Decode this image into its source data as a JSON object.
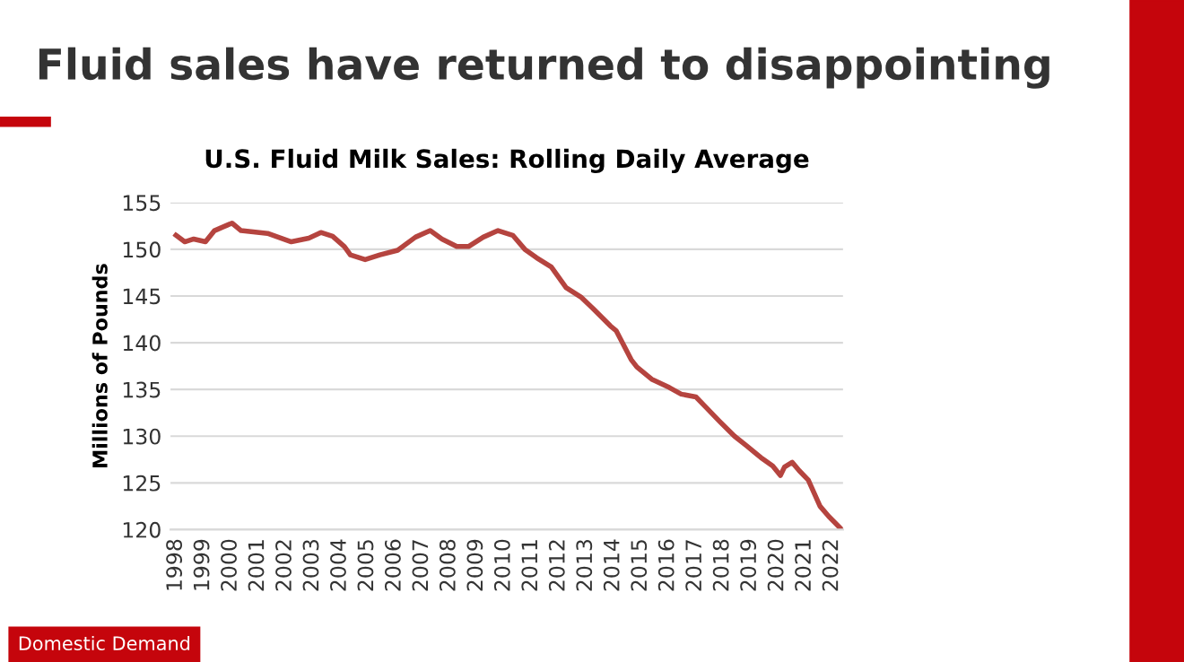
{
  "chart_data": {
    "type": "line",
    "title": "Fluid sales have returned to disappointing",
    "subtitle": "U.S. Fluid Milk Sales: Rolling Daily Average",
    "ylabel": "Millions of Pounds",
    "annotations": [
      "Domestic Demand"
    ],
    "series": [
      {
        "color": "#b5443f",
        "x": [
          1998.0,
          1998.32,
          1998.65,
          1999.08,
          1999.41,
          2000.05,
          2000.38,
          2001.35,
          2002.22,
          2002.86,
          2003.3,
          2003.73,
          2004.16,
          2004.38,
          2004.92,
          2005.46,
          2006.11,
          2006.76,
          2007.3,
          2007.73,
          2008.27,
          2008.7,
          2009.24,
          2009.78,
          2010.32,
          2010.76,
          2011.19,
          2011.73,
          2012.27,
          2012.81,
          2013.24,
          2013.89,
          2014.1,
          2014.65,
          2014.86,
          2015.4,
          2016.05,
          2016.48,
          2017.02,
          2017.35,
          2017.88,
          2018.43,
          2018.86,
          2019.4,
          2019.83,
          2020.11,
          2020.26,
          2020.54,
          2020.8,
          2021.13,
          2021.56,
          2021.88,
          2022.32
        ],
        "values": [
          151.5,
          150.8,
          151.1,
          150.8,
          152.0,
          152.8,
          152.0,
          151.7,
          150.8,
          151.2,
          151.8,
          151.4,
          150.3,
          149.4,
          148.9,
          149.4,
          149.9,
          151.3,
          152.0,
          151.1,
          150.3,
          150.3,
          151.3,
          152.0,
          151.5,
          150.0,
          149.1,
          148.1,
          145.9,
          144.9,
          143.7,
          141.8,
          141.3,
          138.2,
          137.4,
          136.1,
          135.2,
          134.5,
          134.2,
          133.2,
          131.6,
          130.0,
          129.0,
          127.7,
          126.8,
          125.8,
          126.7,
          127.2,
          126.3,
          125.3,
          122.5,
          121.4,
          120.1
        ]
      }
    ],
    "xlim": [
      1997.8,
      2022.4
    ],
    "xticks": [
      1998,
      1999,
      2000,
      2001,
      2002,
      2003,
      2004,
      2005,
      2006,
      2007,
      2008,
      2009,
      2010,
      2011,
      2012,
      2013,
      2014,
      2015,
      2016,
      2017,
      2018,
      2019,
      2020,
      2021,
      2022
    ],
    "ylim": [
      120,
      155
    ],
    "yticks": [
      120,
      125,
      130,
      135,
      140,
      145,
      150,
      155
    ],
    "grid": "y",
    "legend": false,
    "marker": "none",
    "line_style": "solid"
  }
}
